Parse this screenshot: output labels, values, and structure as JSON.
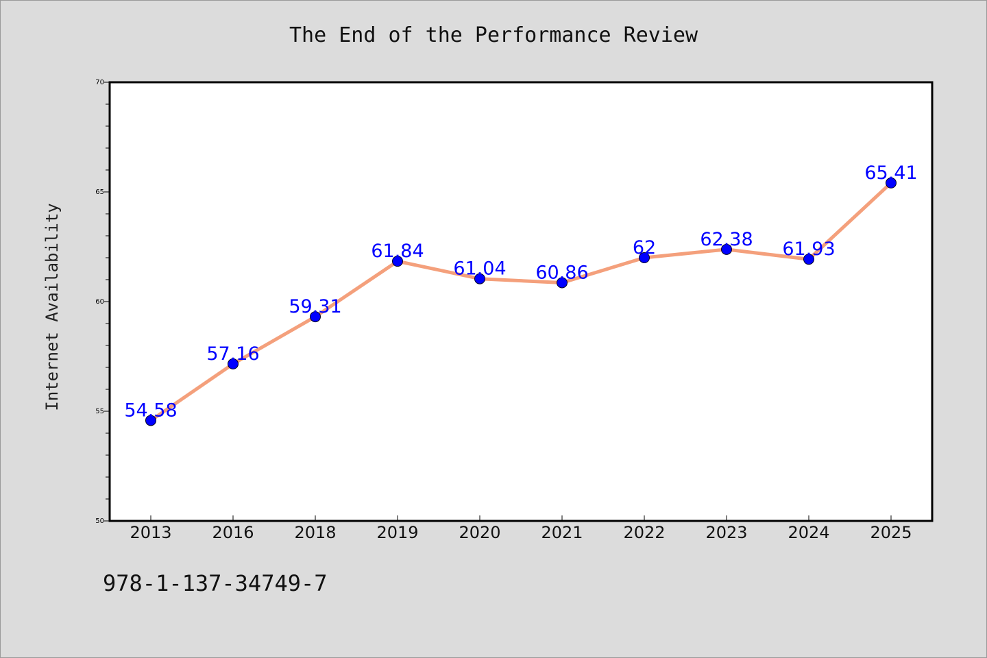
{
  "chart_data": {
    "type": "line",
    "title": "The End of the Performance Review",
    "xlabel": "",
    "ylabel": "Internet Availability",
    "categories": [
      "2013",
      "2016",
      "2018",
      "2019",
      "2020",
      "2021",
      "2022",
      "2023",
      "2024",
      "2025"
    ],
    "values": [
      54.58,
      57.16,
      59.31,
      61.84,
      61.04,
      60.86,
      62,
      62.38,
      61.93,
      65.41
    ],
    "data_labels": [
      "54.58",
      "57.16",
      "59.31",
      "61.84",
      "61.04",
      "60.86",
      "62",
      "62.38",
      "61.93",
      "65.41"
    ],
    "ylim": [
      50,
      70
    ],
    "y_ticks": [
      "50",
      "55",
      "60",
      "65",
      "70"
    ],
    "grid": false,
    "legend": "none",
    "colors": {
      "line": "#f4a07c",
      "marker": "#0000ff",
      "label": "#0000ff",
      "plot_bg": "#ffffff",
      "page_bg": "#dcdcdc"
    }
  },
  "footer": {
    "isbn": "978-1-137-34749-7"
  }
}
